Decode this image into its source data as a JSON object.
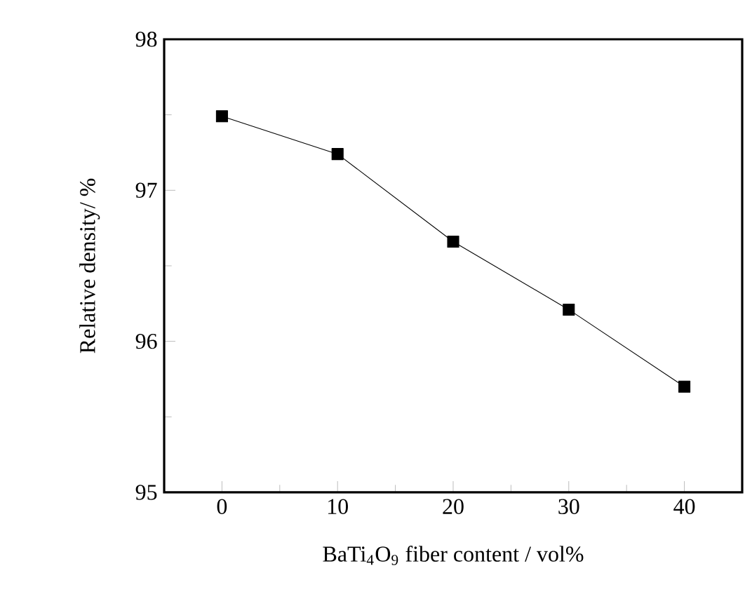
{
  "chart_data": {
    "type": "line",
    "xlabel": "BaTi$_{4}$O$_{9}$ fiber content / vol%",
    "ylabel": "Relative density/ %",
    "x": [
      0,
      10,
      20,
      30,
      40
    ],
    "series": [
      {
        "color": "#000000",
        "values": [
          97.49,
          97.24,
          96.66,
          96.21,
          95.7
        ]
      }
    ],
    "xlim": [
      -5,
      45
    ],
    "ylim": [
      95,
      98
    ],
    "xticks": [
      0,
      10,
      20,
      30,
      40
    ],
    "yticks": [
      95,
      96,
      97,
      98
    ],
    "marker": "square",
    "line_style": "solid"
  }
}
